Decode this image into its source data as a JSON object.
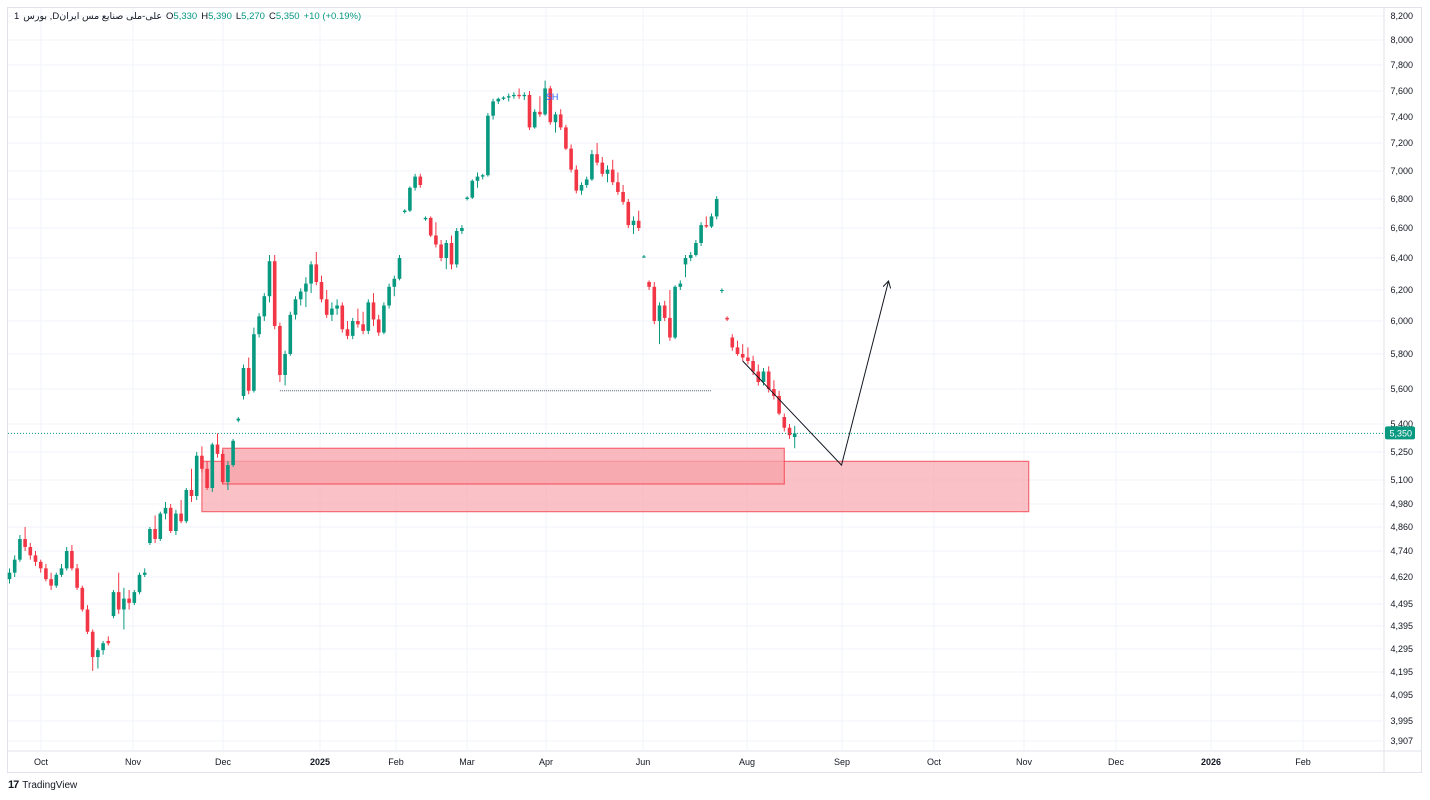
{
  "legend": {
    "interval": "1",
    "symbol": "بورس ,Dعلی-ملی صنایع مس ایران",
    "open_label": "O",
    "open": "5,330",
    "high_label": "H",
    "high": "5,390",
    "low_label": "L",
    "low": "5,270",
    "close_label": "C",
    "close": "5,350",
    "change": "+10 (+0.19%)"
  },
  "brand": {
    "logo": "17",
    "name": "TradingView"
  },
  "colors": {
    "up": "#089981",
    "down": "#f23645",
    "zone_fill": "#f7a1a9",
    "zone_stroke": "#f23645",
    "grid": "#f0f3fa",
    "last_price_bg": "#089981"
  },
  "annotation": {
    "label": "SH"
  },
  "chart_data": {
    "type": "candlestick",
    "title": "",
    "xlabel": "",
    "ylabel": "",
    "y_axis_ticks": [
      3907,
      3995,
      4095,
      4195,
      4295,
      4395,
      4495,
      4620,
      4740,
      4860,
      4980,
      5100,
      5250,
      5400,
      5600,
      5800,
      6000,
      6200,
      6400,
      6600,
      6800,
      7000,
      7200,
      7400,
      7600,
      7800,
      8000,
      8200
    ],
    "y_axis_labels": [
      "3,907",
      "3,995",
      "4,095",
      "4,195",
      "4,295",
      "4,395",
      "4,495",
      "4,620",
      "4,740",
      "4,860",
      "4,980",
      "5,100",
      "5,250",
      "5,400",
      "5,600",
      "5,800",
      "6,000",
      "6,200",
      "6,400",
      "6,600",
      "6,800",
      "7,000",
      "7,200",
      "7,400",
      "7,600",
      "7,800",
      "8,000",
      "8,200"
    ],
    "x_axis_labels": [
      "Oct",
      "Nov",
      "Dec",
      "2025",
      "Feb",
      "Mar",
      "Apr",
      "Jun",
      "Aug",
      "Sep",
      "Oct",
      "Nov",
      "Dec",
      "2026",
      "Feb"
    ],
    "x_axis_dates": [
      "2024-10-01",
      "2024-11-01",
      "2024-12-01",
      "2025-01-01",
      "2025-02-01",
      "2025-03-01",
      "2025-04-01",
      "2025-06-01",
      "2025-08-01",
      "2025-09-01",
      "2025-10-01",
      "2025-11-01",
      "2025-12-01",
      "2026-01-01",
      "2026-02-01"
    ],
    "last_price": 5350,
    "last_price_label": "5,350",
    "grid": true,
    "candles": [
      [
        4610,
        4660,
        4590,
        4640
      ],
      [
        4640,
        4720,
        4620,
        4700
      ],
      [
        4700,
        4820,
        4690,
        4800
      ],
      [
        4800,
        4860,
        4740,
        4760
      ],
      [
        4760,
        4780,
        4700,
        4720
      ],
      [
        4720,
        4740,
        4670,
        4690
      ],
      [
        4690,
        4700,
        4640,
        4660
      ],
      [
        4660,
        4680,
        4600,
        4610
      ],
      [
        4610,
        4640,
        4560,
        4580
      ],
      [
        4580,
        4640,
        4570,
        4630
      ],
      [
        4630,
        4680,
        4620,
        4660
      ],
      [
        4660,
        4760,
        4650,
        4740
      ],
      [
        4740,
        4770,
        4650,
        4660
      ],
      [
        4660,
        4680,
        4560,
        4570
      ],
      [
        4570,
        4580,
        4460,
        4470
      ],
      [
        4470,
        4490,
        4360,
        4370
      ],
      [
        4370,
        4380,
        4200,
        4260
      ],
      [
        4260,
        4300,
        4210,
        4290
      ],
      [
        4290,
        4330,
        4270,
        4320
      ],
      [
        4330,
        4350,
        4310,
        4320
      ],
      [
        4440,
        4560,
        4430,
        4550
      ],
      [
        4550,
        4640,
        4450,
        4470
      ],
      [
        4470,
        4570,
        4380,
        4520
      ],
      [
        4520,
        4560,
        4470,
        4500
      ],
      [
        4500,
        4560,
        4490,
        4550
      ],
      [
        4550,
        4640,
        4540,
        4630
      ],
      [
        4630,
        4660,
        4620,
        4640
      ],
      [
        4780,
        4860,
        4770,
        4850
      ],
      [
        4850,
        4920,
        4780,
        4800
      ],
      [
        4800,
        4940,
        4790,
        4930
      ],
      [
        4930,
        4990,
        4900,
        4960
      ],
      [
        4960,
        4980,
        4830,
        4840
      ],
      [
        4840,
        4950,
        4820,
        4930
      ],
      [
        4930,
        5000,
        4880,
        4890
      ],
      [
        4890,
        5060,
        4880,
        5050
      ],
      [
        5050,
        5160,
        4990,
        5020
      ],
      [
        5020,
        5250,
        5000,
        5230
      ],
      [
        5230,
        5280,
        5140,
        5160
      ],
      [
        5160,
        5200,
        5050,
        5060
      ],
      [
        5060,
        5300,
        5040,
        5290
      ],
      [
        5290,
        5350,
        5220,
        5240
      ],
      [
        5240,
        5260,
        5080,
        5090
      ],
      [
        5090,
        5200,
        5050,
        5180
      ],
      [
        5180,
        5320,
        5170,
        5310
      ],
      [
        5420,
        5440,
        5410,
        5430
      ],
      [
        5560,
        5740,
        5540,
        5720
      ],
      [
        5720,
        5780,
        5570,
        5590
      ],
      [
        5590,
        5960,
        5580,
        5920
      ],
      [
        5920,
        6050,
        5900,
        6030
      ],
      [
        6030,
        6180,
        6000,
        6160
      ],
      [
        6160,
        6420,
        6120,
        6380
      ],
      [
        6380,
        6420,
        5950,
        5970
      ],
      [
        5970,
        5990,
        5640,
        5680
      ],
      [
        5680,
        5820,
        5620,
        5800
      ],
      [
        5800,
        6060,
        5790,
        6040
      ],
      [
        6040,
        6160,
        6010,
        6140
      ],
      [
        6140,
        6210,
        6100,
        6190
      ],
      [
        6190,
        6280,
        6090,
        6240
      ],
      [
        6240,
        6380,
        6180,
        6360
      ],
      [
        6360,
        6440,
        6230,
        6250
      ],
      [
        6250,
        6290,
        6120,
        6140
      ],
      [
        6140,
        6200,
        6020,
        6040
      ],
      [
        6040,
        6120,
        6000,
        6080
      ],
      [
        6080,
        6140,
        6040,
        6100
      ],
      [
        6100,
        6120,
        5930,
        5950
      ],
      [
        5950,
        6000,
        5890,
        5910
      ],
      [
        5910,
        6020,
        5890,
        6000
      ],
      [
        6000,
        6080,
        5960,
        5980
      ],
      [
        5980,
        6060,
        5920,
        5940
      ],
      [
        5940,
        6140,
        5920,
        6120
      ],
      [
        6120,
        6180,
        5970,
        6010
      ],
      [
        6010,
        6040,
        5910,
        5930
      ],
      [
        5930,
        6120,
        5920,
        6100
      ],
      [
        6100,
        6240,
        6080,
        6220
      ],
      [
        6220,
        6290,
        6160,
        6270
      ],
      [
        6270,
        6420,
        6260,
        6400
      ],
      [
        6710,
        6730,
        6700,
        6720
      ],
      [
        6720,
        6890,
        6710,
        6880
      ],
      [
        6880,
        6980,
        6860,
        6960
      ],
      [
        6960,
        6980,
        6880,
        6900
      ],
      [
        6660,
        6680,
        6650,
        6670
      ],
      [
        6670,
        6680,
        6540,
        6550
      ],
      [
        6550,
        6640,
        6470,
        6490
      ],
      [
        6490,
        6520,
        6380,
        6400
      ],
      [
        6400,
        6520,
        6330,
        6500
      ],
      [
        6500,
        6550,
        6330,
        6360
      ],
      [
        6360,
        6600,
        6340,
        6580
      ],
      [
        6580,
        6620,
        6560,
        6600
      ],
      [
        6800,
        6820,
        6790,
        6810
      ],
      [
        6810,
        6940,
        6800,
        6930
      ],
      [
        6930,
        6990,
        6880,
        6960
      ],
      [
        6960,
        6980,
        6940,
        6970
      ],
      [
        6970,
        7430,
        6960,
        7410
      ],
      [
        7410,
        7540,
        7380,
        7520
      ],
      [
        7520,
        7550,
        7500,
        7540
      ],
      [
        7540,
        7560,
        7530,
        7550
      ],
      [
        7550,
        7580,
        7520,
        7560
      ],
      [
        7560,
        7590,
        7540,
        7570
      ],
      [
        7570,
        7620,
        7540,
        7560
      ],
      [
        7560,
        7590,
        7530,
        7570
      ],
      [
        7570,
        7600,
        7300,
        7320
      ],
      [
        7320,
        7460,
        7310,
        7440
      ],
      [
        7440,
        7560,
        7400,
        7420
      ],
      [
        7420,
        7680,
        7410,
        7620
      ],
      [
        7620,
        7640,
        7340,
        7360
      ],
      [
        7360,
        7440,
        7280,
        7420
      ],
      [
        7420,
        7460,
        7300,
        7320
      ],
      [
        7320,
        7340,
        7150,
        7160
      ],
      [
        7160,
        7190,
        6990,
        7010
      ],
      [
        7010,
        7040,
        6840,
        6860
      ],
      [
        6860,
        6920,
        6830,
        6900
      ],
      [
        6900,
        6960,
        6880,
        6940
      ],
      [
        6940,
        7150,
        6930,
        7120
      ],
      [
        7120,
        7200,
        7040,
        7060
      ],
      [
        7060,
        7100,
        6960,
        6980
      ],
      [
        6980,
        7040,
        6920,
        7010
      ],
      [
        7010,
        7080,
        6900,
        6920
      ],
      [
        6920,
        6990,
        6830,
        6850
      ],
      [
        6850,
        6900,
        6760,
        6780
      ],
      [
        6780,
        6800,
        6600,
        6620
      ],
      [
        6620,
        6680,
        6560,
        6650
      ],
      [
        6650,
        6720,
        6580,
        6600
      ],
      [
        6410,
        6420,
        6400,
        6410
      ],
      [
        6250,
        6260,
        6200,
        6220
      ],
      [
        6220,
        6250,
        5980,
        6000
      ],
      [
        6000,
        6120,
        5860,
        6100
      ],
      [
        6100,
        6130,
        6000,
        6020
      ],
      [
        6020,
        6200,
        5880,
        5900
      ],
      [
        5900,
        6230,
        5890,
        6220
      ],
      [
        6220,
        6260,
        6200,
        6240
      ],
      [
        6360,
        6420,
        6280,
        6400
      ],
      [
        6400,
        6440,
        6380,
        6420
      ],
      [
        6420,
        6520,
        6410,
        6500
      ],
      [
        6500,
        6640,
        6480,
        6620
      ],
      [
        6620,
        6680,
        6600,
        6610
      ],
      [
        6610,
        6700,
        6600,
        6680
      ],
      [
        6680,
        6820,
        6660,
        6800
      ],
      [
        6200,
        6210,
        6180,
        6200
      ],
      [
        6020,
        6030,
        6000,
        6010
      ],
      [
        5900,
        5920,
        5820,
        5840
      ],
      [
        5840,
        5880,
        5790,
        5800
      ],
      [
        5800,
        5860,
        5760,
        5780
      ],
      [
        5780,
        5840,
        5740,
        5760
      ],
      [
        5760,
        5790,
        5680,
        5700
      ],
      [
        5700,
        5740,
        5620,
        5640
      ],
      [
        5640,
        5720,
        5620,
        5700
      ],
      [
        5700,
        5730,
        5580,
        5600
      ],
      [
        5600,
        5650,
        5540,
        5560
      ],
      [
        5560,
        5590,
        5450,
        5460
      ],
      [
        5440,
        5460,
        5360,
        5380
      ],
      [
        5380,
        5400,
        5320,
        5340
      ],
      [
        5330,
        5390,
        5270,
        5350
      ]
    ],
    "horizontal_line": {
      "price": 5590,
      "start_index": 52,
      "end_index": 135
    },
    "zones": [
      {
        "start_index": 37,
        "end_index": 196,
        "top": 5200,
        "bottom": 4940
      },
      {
        "start_index": 41,
        "end_index": 149,
        "top": 5270,
        "bottom": 5080
      }
    ],
    "projection_path": [
      {
        "index": 141,
        "price": 5760
      },
      {
        "index": 160,
        "price": 5180
      },
      {
        "index": 169,
        "price": 6250
      }
    ]
  }
}
